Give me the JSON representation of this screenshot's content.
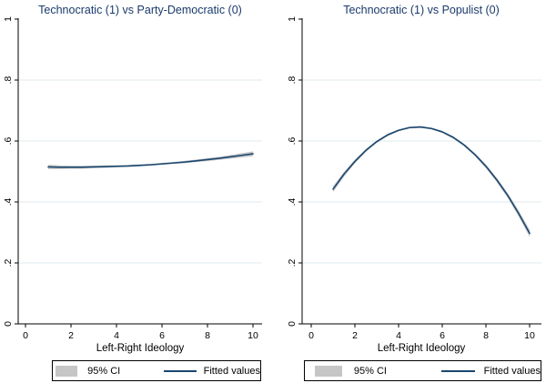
{
  "colors": {
    "title": "#1a3a6b",
    "fitted_line": "#1a476f",
    "ci_band": "#c6c6c6",
    "gridline": "#dfeaef",
    "axis": "#000000",
    "background": "#ffffff"
  },
  "legend": {
    "ci_label": "95% CI",
    "fit_label": "Fitted values"
  },
  "chart_data": [
    {
      "type": "line",
      "title": "Technocratic (1) vs Party-Democratic (0)",
      "xlabel": "Left-Right Ideology",
      "ylabel": "",
      "xlim": [
        0,
        10
      ],
      "ylim": [
        0,
        1
      ],
      "xticks": [
        "0",
        "2",
        "4",
        "6",
        "8",
        "10"
      ],
      "xtick_values": [
        0,
        2,
        4,
        6,
        8,
        10
      ],
      "ytick_labels": [
        "0",
        ".2",
        ".4",
        ".6",
        ".8",
        "1"
      ],
      "ytick_values": [
        0,
        0.2,
        0.4,
        0.6,
        0.8,
        1
      ],
      "grid": "horizontal",
      "legend_position": "bottom",
      "x": [
        1,
        1.5,
        2,
        2.5,
        3,
        3.5,
        4,
        4.5,
        5,
        5.5,
        6,
        6.5,
        7,
        7.5,
        8,
        8.5,
        9,
        9.5,
        10
      ],
      "series": [
        {
          "name": "Fitted values",
          "values": [
            0.515,
            0.514,
            0.514,
            0.514,
            0.515,
            0.516,
            0.517,
            0.518,
            0.52,
            0.522,
            0.525,
            0.528,
            0.531,
            0.535,
            0.539,
            0.543,
            0.548,
            0.553,
            0.558
          ]
        }
      ],
      "ci": {
        "name": "95% CI",
        "half_width": [
          0.007,
          0.006,
          0.005,
          0.005,
          0.004,
          0.004,
          0.003,
          0.003,
          0.003,
          0.003,
          0.003,
          0.003,
          0.004,
          0.004,
          0.005,
          0.005,
          0.006,
          0.007,
          0.008
        ]
      }
    },
    {
      "type": "line",
      "title": "Technocratic (1) vs Populist (0)",
      "xlabel": "Left-Right Ideology",
      "ylabel": "",
      "xlim": [
        0,
        10
      ],
      "ylim": [
        0,
        1
      ],
      "xticks": [
        "0",
        "2",
        "4",
        "6",
        "8",
        "10"
      ],
      "xtick_values": [
        0,
        2,
        4,
        6,
        8,
        10
      ],
      "ytick_labels": [
        "0",
        ".2",
        ".4",
        ".6",
        ".8",
        "1"
      ],
      "ytick_values": [
        0,
        0.2,
        0.4,
        0.6,
        0.8,
        1
      ],
      "grid": "horizontal",
      "legend_position": "bottom",
      "x": [
        1,
        1.5,
        2,
        2.5,
        3,
        3.5,
        4,
        4.5,
        5,
        5.5,
        6,
        6.5,
        7,
        7.5,
        8,
        8.5,
        9,
        9.5,
        10
      ],
      "series": [
        {
          "name": "Fitted values",
          "values": [
            0.442,
            0.491,
            0.533,
            0.569,
            0.598,
            0.62,
            0.635,
            0.644,
            0.646,
            0.641,
            0.63,
            0.612,
            0.587,
            0.555,
            0.517,
            0.472,
            0.421,
            0.362,
            0.297
          ]
        }
      ],
      "ci": {
        "name": "95% CI",
        "half_width": [
          0.01,
          0.008,
          0.006,
          0.005,
          0.004,
          0.004,
          0.003,
          0.003,
          0.003,
          0.003,
          0.003,
          0.004,
          0.004,
          0.005,
          0.006,
          0.007,
          0.008,
          0.01,
          0.012
        ]
      }
    }
  ]
}
